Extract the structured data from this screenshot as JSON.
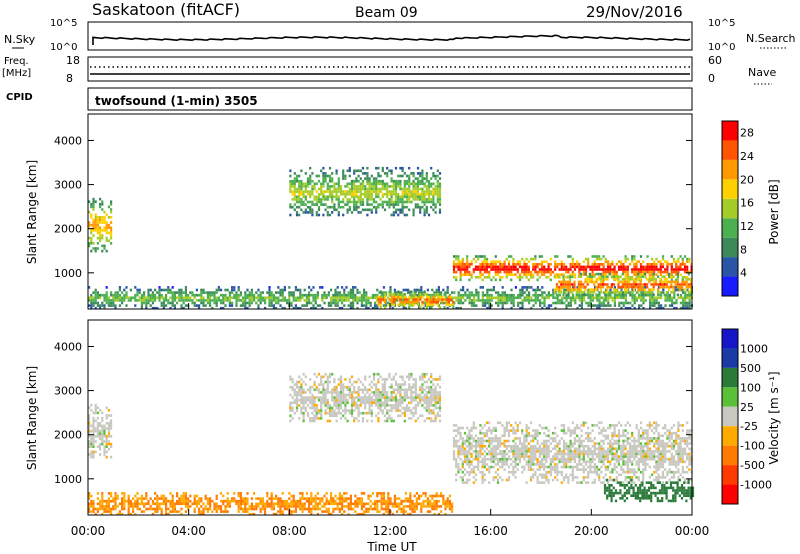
{
  "header": {
    "station": "Saskatoon (fitACF)",
    "beam": "Beam 09",
    "date": "29/Nov/2016"
  },
  "noise_panel": {
    "left_label": "N.Sky",
    "right_label": "N.Search",
    "left_ticks": [
      "10^5",
      "10^0"
    ],
    "right_ticks": [
      "10^5",
      "10^0"
    ]
  },
  "freq_panel": {
    "left_label_1": "Freq.",
    "left_label_2": "[MHz]",
    "left_ticks": [
      "18",
      "8"
    ],
    "right_label": "Nave",
    "right_ticks": [
      "60",
      "0"
    ]
  },
  "cpid": {
    "label": "CPID",
    "value": "twofsound (1-min) 3505"
  },
  "colors": {
    "power": [
      "#1a1aff",
      "#2a54a6",
      "#3c8a5a",
      "#4caf50",
      "#a6cc2a",
      "#ffd000",
      "#ff9900",
      "#ff5500",
      "#ff0000"
    ],
    "velocity": [
      "#1616c8",
      "#1a3aa6",
      "#2a7a3a",
      "#5ac03a",
      "#c8c8c0",
      "#ffaa00",
      "#ff7a00",
      "#ff3a00",
      "#ff0000"
    ],
    "ground_scatter": "#c8c8c0"
  },
  "chart_data": [
    {
      "type": "heatmap",
      "title": "Power",
      "xlabel": "Time UT",
      "ylabel": "Slant Range [km]",
      "xticks": [
        "00:00",
        "04:00",
        "08:00",
        "12:00",
        "16:00",
        "20:00",
        "00:00"
      ],
      "xlim_hours": [
        0,
        24
      ],
      "yticks": [
        "1000",
        "2000",
        "3000",
        "4000"
      ],
      "ylim": [
        180,
        4600
      ],
      "colorbar": {
        "label": "Power [dB]",
        "ticks": [
          "4",
          "8",
          "12",
          "16",
          "20",
          "24",
          "28"
        ],
        "range": [
          0,
          30
        ]
      },
      "features": [
        {
          "name": "early band",
          "t_start": 0.0,
          "t_end": 0.9,
          "range_start": 1500,
          "range_end": 2700,
          "peak_db": 22
        },
        {
          "name": "near-range scatter",
          "t_start": 0.0,
          "t_end": 24.0,
          "range_start": 200,
          "range_end": 700,
          "peak_db": 14
        },
        {
          "name": "near-range enhancement",
          "t_start": 11.5,
          "t_end": 14.5,
          "range_start": 200,
          "range_end": 600,
          "peak_db": 26
        },
        {
          "name": "far scatter",
          "t_start": 8.0,
          "t_end": 14.0,
          "range_start": 2300,
          "range_end": 3400,
          "peak_db": 16
        },
        {
          "name": "main ionospheric band",
          "t_start": 14.5,
          "t_end": 24.0,
          "range_start": 850,
          "range_end": 1400,
          "peak_db": 30
        },
        {
          "name": "late near band",
          "t_start": 18.5,
          "t_end": 24.0,
          "range_start": 500,
          "range_end": 1000,
          "peak_db": 26
        }
      ]
    },
    {
      "type": "heatmap",
      "title": "Velocity",
      "xlabel": "Time UT",
      "ylabel": "Slant Range [km]",
      "xticks": [
        "00:00",
        "04:00",
        "08:00",
        "12:00",
        "16:00",
        "20:00",
        "00:00"
      ],
      "xlim_hours": [
        0,
        24
      ],
      "yticks": [
        "1000",
        "2000",
        "3000",
        "4000"
      ],
      "ylim": [
        180,
        4600
      ],
      "colorbar": {
        "label": "Velocity [m s⁻¹]",
        "ticks": [
          "1000",
          "500",
          "100",
          "25",
          "-25",
          "-100",
          "-500",
          "-1000"
        ]
      },
      "features": [
        {
          "name": "early ground scatter",
          "t_start": 0.0,
          "t_end": 0.9,
          "range_start": 1500,
          "range_end": 2700,
          "velocity": 0
        },
        {
          "name": "near-range flow",
          "t_start": 0.0,
          "t_end": 14.5,
          "range_start": 200,
          "range_end": 700,
          "velocity": -100
        },
        {
          "name": "far ground scatter",
          "t_start": 8.0,
          "t_end": 14.0,
          "range_start": 2300,
          "range_end": 3400,
          "velocity": 0
        },
        {
          "name": "main ground scatter band",
          "t_start": 14.5,
          "t_end": 24.0,
          "range_start": 900,
          "range_end": 2300,
          "velocity": 0
        },
        {
          "name": "late positive flow",
          "t_start": 20.5,
          "t_end": 24.0,
          "range_start": 500,
          "range_end": 1000,
          "velocity": 300
        }
      ]
    }
  ]
}
